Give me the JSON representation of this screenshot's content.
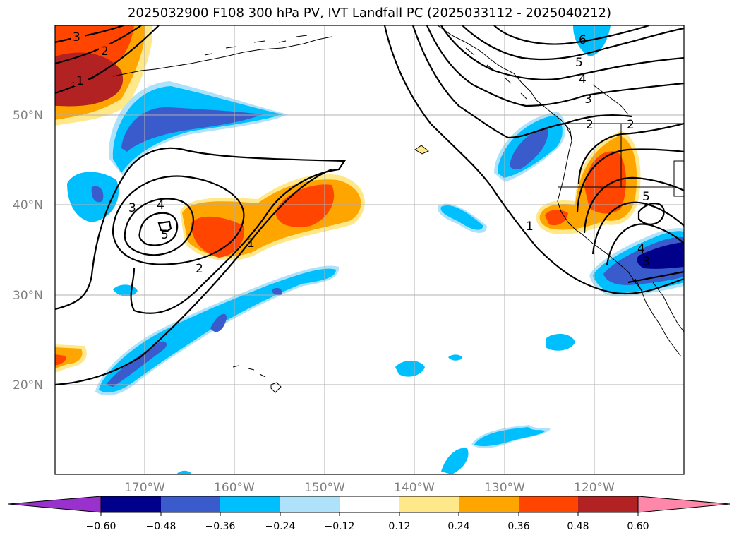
{
  "title": "2025032900 F108 300 hPa PV, IVT Landfall PC (2025033112 - 2025040212)",
  "map": {
    "lat_labels": [
      "50°N",
      "40°N",
      "30°N",
      "20°N"
    ],
    "lon_labels": [
      "170°W",
      "160°W",
      "150°W",
      "140°W",
      "130°W",
      "120°W"
    ],
    "contour_labels": [
      "3",
      "2",
      "1",
      "3",
      "4",
      "5",
      "2",
      "1",
      "1",
      "6",
      "5",
      "4",
      "3",
      "2",
      "2",
      "5",
      "4",
      "3"
    ]
  },
  "colorbar": {
    "ticks": [
      "−0.60",
      "−0.48",
      "−0.36",
      "−0.24",
      "−0.12",
      "0.12",
      "0.24",
      "0.36",
      "0.48",
      "0.60"
    ],
    "colors": [
      "#9932CC",
      "#00008B",
      "#3A5BCB",
      "#00BFFF",
      "#AEE2FA",
      "#FFFFFF",
      "#FFE88A",
      "#FFA500",
      "#FF4500",
      "#B22222",
      "#FF88AA"
    ]
  }
}
